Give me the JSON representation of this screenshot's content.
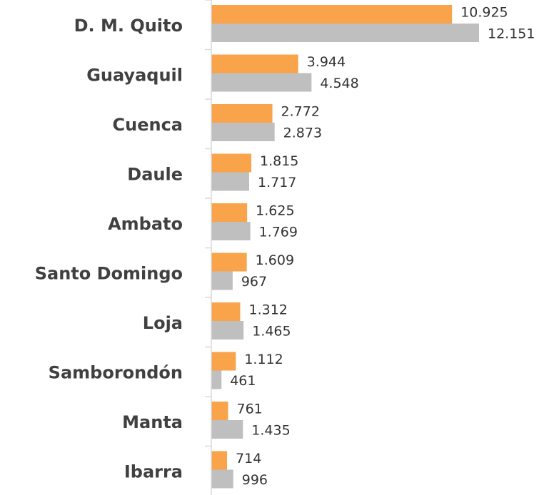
{
  "chart_data": {
    "type": "bar",
    "orientation": "horizontal",
    "categories": [
      "D. M. Quito",
      "Guayaquil",
      "Cuenca",
      "Daule",
      "Ambato",
      "Santo Domingo",
      "Loja",
      "Samborondón",
      "Manta",
      "Ibarra"
    ],
    "series": [
      {
        "color": "#f9a34a",
        "values": [
          10925,
          3944,
          2772,
          1815,
          1625,
          1609,
          1312,
          1112,
          761,
          714
        ],
        "value_labels": [
          "10.925",
          "3.944",
          "2.772",
          "1.815",
          "1.625",
          "1.609",
          "1.312",
          "1.112",
          "761",
          "714"
        ]
      },
      {
        "color": "#bfbfbf",
        "values": [
          12151,
          4548,
          2873,
          1717,
          1769,
          967,
          1465,
          461,
          1435,
          996
        ],
        "value_labels": [
          "12.151",
          "4.548",
          "2.873",
          "1.717",
          "1.769",
          "967",
          "1.465",
          "461",
          "1.435",
          "996"
        ]
      }
    ]
  }
}
